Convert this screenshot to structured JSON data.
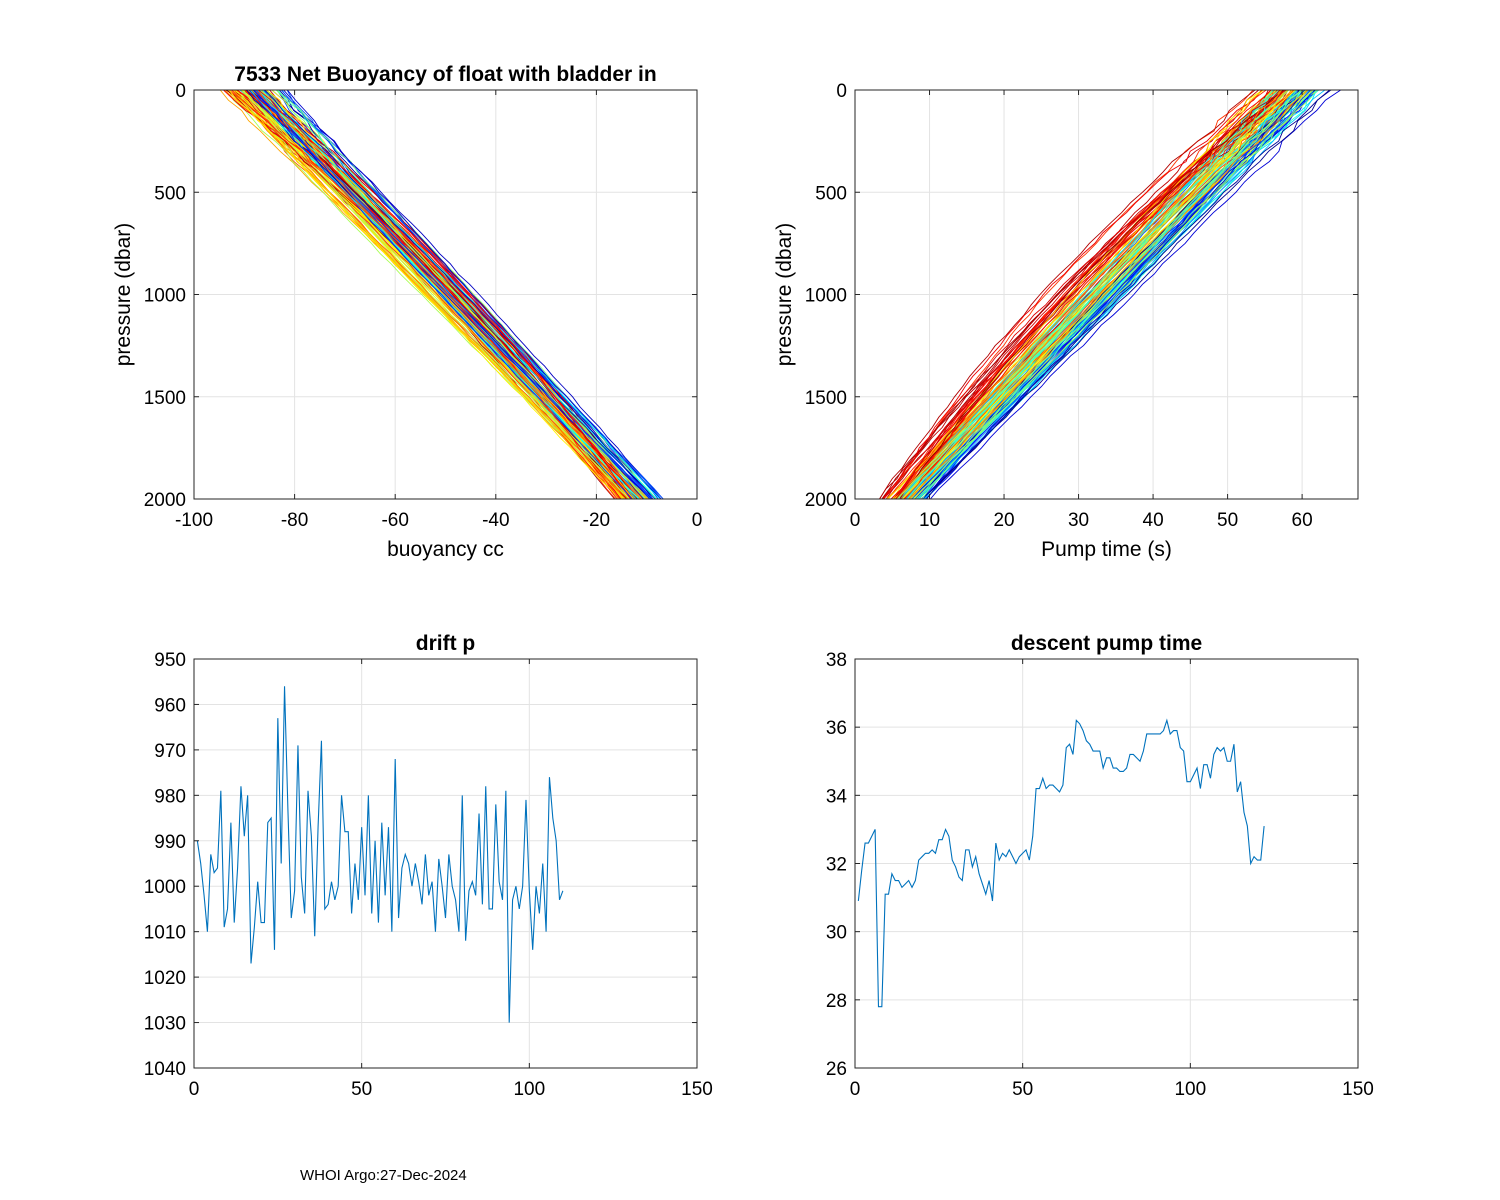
{
  "footer": "WHOI Argo:27-Dec-2024",
  "chart_data": [
    {
      "id": "buoyancy",
      "type": "line",
      "title": "7533 Net Buoyancy of float with bladder in",
      "xlabel": "buoyancy cc",
      "ylabel": "pressure (dbar)",
      "xlim": [
        -100,
        0
      ],
      "ylim": [
        0,
        2000
      ],
      "y_reversed": true,
      "grid": true,
      "xticks": [
        -100,
        -80,
        -60,
        -40,
        -20,
        0
      ],
      "yticks": [
        0,
        500,
        1000,
        1500,
        2000
      ],
      "xtick_labels": [
        "-100",
        "-80",
        "-60",
        "-40",
        "-20",
        "0"
      ],
      "ytick_labels": [
        "0",
        "500",
        "1000",
        "1500",
        "2000"
      ],
      "colormap": "jet",
      "profile_count": 122,
      "surface_range": [
        -97,
        -79
      ],
      "bottom_range": [
        -17,
        -5
      ],
      "profiles_note": "one profile per cycle, colored by cycle number (approximate)"
    },
    {
      "id": "pumptime",
      "type": "line",
      "title": "",
      "xlabel": "Pump time (s)",
      "ylabel": "pressure (dbar)",
      "xlim": [
        0,
        67.5
      ],
      "ylim": [
        0,
        2000
      ],
      "y_reversed": true,
      "grid": true,
      "xticks": [
        0,
        10,
        20,
        30,
        40,
        50,
        60
      ],
      "yticks": [
        0,
        500,
        1000,
        1500,
        2000
      ],
      "xtick_labels": [
        "0",
        "10",
        "20",
        "30",
        "40",
        "50",
        "60"
      ],
      "ytick_labels": [
        "0",
        "500",
        "1000",
        "1500",
        "2000"
      ],
      "colormap": "jet",
      "profile_count": 122,
      "surface_range": [
        53,
        67
      ],
      "bottom_range": [
        3,
        11
      ],
      "profiles_note": "one profile per cycle, colored by cycle number (approximate)"
    },
    {
      "id": "driftp",
      "type": "line",
      "title": "drift p",
      "xlabel": "",
      "ylabel": "",
      "xlim": [
        0,
        150
      ],
      "ylim": [
        950,
        1040
      ],
      "y_reversed": true,
      "grid": true,
      "xticks": [
        0,
        50,
        100,
        150
      ],
      "yticks": [
        950,
        960,
        970,
        980,
        990,
        1000,
        1010,
        1020,
        1030,
        1040
      ],
      "xtick_labels": [
        "0",
        "50",
        "100",
        "150"
      ],
      "ytick_labels": [
        "950",
        "960",
        "970",
        "980",
        "990",
        "1000",
        "1010",
        "1020",
        "1030",
        "1040"
      ],
      "color": "#0072BD",
      "x_start": 1,
      "values": [
        990,
        995,
        1002,
        1010,
        993,
        997,
        996,
        979,
        1009,
        1005,
        986,
        1008,
        996,
        978,
        989,
        980,
        1017,
        1009,
        999,
        1008,
        1008,
        986,
        985,
        1014,
        963,
        995,
        956,
        983,
        1007,
        1001,
        969,
        998,
        1006,
        979,
        989,
        1011,
        987,
        968,
        1005,
        1004,
        999,
        1003,
        1000,
        980,
        988,
        988,
        1006,
        995,
        1003,
        987,
        1002,
        980,
        1006,
        990,
        1008,
        986,
        1002,
        987,
        1010,
        972,
        1007,
        996,
        993,
        995,
        1000,
        995,
        999,
        1004,
        993,
        1002,
        999,
        1010,
        994,
        1000,
        1007,
        993,
        1000,
        1003,
        1010,
        980,
        1012,
        1001,
        999,
        1002,
        984,
        1004,
        978,
        1005,
        1005,
        982,
        999,
        1003,
        979,
        1030,
        1003,
        1000,
        1005,
        1000,
        981,
        1001,
        1014,
        1000,
        1006,
        995,
        1010,
        976,
        985,
        990,
        1003,
        1001
      ]
    },
    {
      "id": "pump",
      "type": "line",
      "title": "descent pump time",
      "xlabel": "",
      "ylabel": "",
      "xlim": [
        0,
        150
      ],
      "ylim": [
        26,
        38
      ],
      "y_reversed": false,
      "grid": true,
      "xticks": [
        0,
        50,
        100,
        150
      ],
      "yticks": [
        26,
        28,
        30,
        32,
        34,
        36,
        38
      ],
      "xtick_labels": [
        "0",
        "50",
        "100",
        "150"
      ],
      "ytick_labels": [
        "26",
        "28",
        "30",
        "32",
        "34",
        "36",
        "38"
      ],
      "color": "#0072BD",
      "x_start": 1,
      "values": [
        30.9,
        31.8,
        32.6,
        32.6,
        32.8,
        33.0,
        27.8,
        27.8,
        31.1,
        31.1,
        31.7,
        31.5,
        31.5,
        31.3,
        31.4,
        31.5,
        31.3,
        31.5,
        32.1,
        32.2,
        32.3,
        32.3,
        32.4,
        32.3,
        32.7,
        32.7,
        33.0,
        32.8,
        32.1,
        31.9,
        31.6,
        31.5,
        32.4,
        32.4,
        31.9,
        32.2,
        31.7,
        31.4,
        31.1,
        31.5,
        30.9,
        32.6,
        32.1,
        32.3,
        32.2,
        32.4,
        32.2,
        32.0,
        32.2,
        32.3,
        32.4,
        32.1,
        32.8,
        34.2,
        34.2,
        34.5,
        34.2,
        34.3,
        34.3,
        34.2,
        34.1,
        34.3,
        35.4,
        35.5,
        35.2,
        36.2,
        36.1,
        35.9,
        35.6,
        35.5,
        35.3,
        35.3,
        35.3,
        34.8,
        35.1,
        35.1,
        34.8,
        34.8,
        34.7,
        34.7,
        34.8,
        35.2,
        35.2,
        35.1,
        35.0,
        35.3,
        35.8,
        35.8,
        35.8,
        35.8,
        35.8,
        35.9,
        36.2,
        35.8,
        35.9,
        35.9,
        35.4,
        35.3,
        34.4,
        34.4,
        34.6,
        34.8,
        34.2,
        34.9,
        34.9,
        34.5,
        35.2,
        35.4,
        35.3,
        35.4,
        35.0,
        35.0,
        35.5,
        34.1,
        34.4,
        33.5,
        33.1,
        32.0,
        32.2,
        32.1,
        32.1,
        33.1
      ]
    }
  ]
}
